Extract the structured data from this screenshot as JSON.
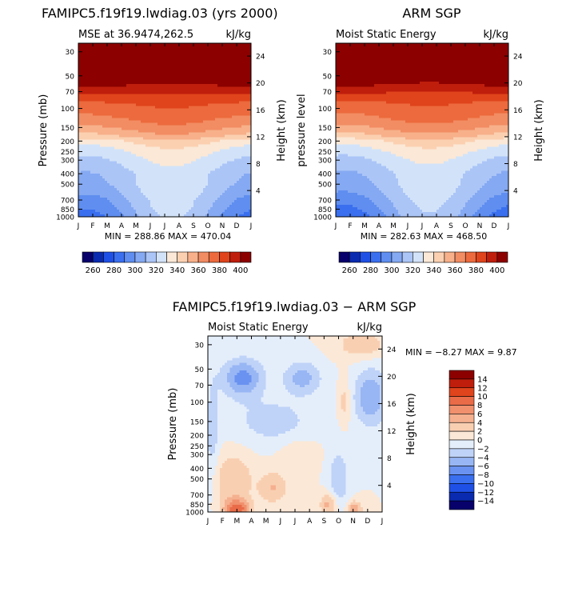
{
  "panels": [
    {
      "title": "FAMIPC5.f19f19.lwdiag.03 (yrs 2000)",
      "subtitle_left": "MSE at 36.9474,262.5",
      "subtitle_right": "kJ/kg",
      "ylabel": "Pressure (mb)",
      "ylabel_right": "Height (km)",
      "minmax": "MIN = 288.86  MAX = 470.04"
    },
    {
      "title": "ARM SGP",
      "subtitle_left": "Moist Static Energy",
      "subtitle_right": "kJ/kg",
      "ylabel": "pressure level",
      "ylabel_right": "Height (km)",
      "minmax": "MIN = 282.63  MAX = 468.50"
    },
    {
      "title": "FAMIPC5.f19f19.lwdiag.03 − ARM SGP",
      "subtitle_left": "Moist Static Energy",
      "subtitle_right": "kJ/kg",
      "ylabel": "Pressure (mb)",
      "ylabel_right": "Height (km)",
      "minmax": "MIN =  −8.27  MAX =    9.87"
    }
  ],
  "colors": {
    "abs_scale": [
      "#08006b",
      "#0a2bb0",
      "#1f50e6",
      "#3a6fef",
      "#5f8ef0",
      "#85a9f2",
      "#abc5f7",
      "#d2e3f9",
      "#fbe8d6",
      "#fbd0b1",
      "#f7b08a",
      "#f28c63",
      "#ec6a3d",
      "#df441c",
      "#bf1e0c",
      "#8c0000"
    ],
    "diff_scale": [
      "#08006b",
      "#0a2bb0",
      "#1f50e6",
      "#3a6fef",
      "#6a92f0",
      "#98b6f4",
      "#bfd3f8",
      "#e4eefb",
      "#fbe8d6",
      "#f9cfb2",
      "#f5b08f",
      "#f0906c",
      "#e96b48",
      "#df441c",
      "#bf1e0c",
      "#8c0000"
    ]
  },
  "chart_data": [
    {
      "type": "heatmap",
      "title": "FAMIPC5.f19f19.lwdiag.03 (yrs 2000)",
      "subtitle": "MSE at 36.9474,262.5",
      "units": "kJ/kg",
      "xlabel": "",
      "ylabel": "Pressure (mb)",
      "ylabel_right": "Height (km)",
      "x_tick_labels": [
        "J",
        "F",
        "M",
        "A",
        "M",
        "J",
        "J",
        "A",
        "S",
        "O",
        "N",
        "D",
        "J"
      ],
      "y_ticks": [
        30,
        50,
        70,
        100,
        150,
        200,
        250,
        300,
        400,
        500,
        700,
        850,
        1000
      ],
      "y_right_ticks": [
        4,
        8,
        12,
        16,
        20,
        24
      ],
      "y_scale": "log",
      "levels": [
        260,
        270,
        280,
        290,
        300,
        310,
        320,
        330,
        340,
        350,
        360,
        370,
        380,
        390,
        400
      ],
      "colorbar_labels": [
        "260",
        "280",
        "300",
        "320",
        "340",
        "360",
        "380",
        "400"
      ],
      "min": 288.86,
      "max": 470.04,
      "profile": {
        "pressure": [
          25,
          30,
          50,
          60,
          70,
          85,
          100,
          120,
          150,
          180,
          200,
          250,
          300,
          400,
          500,
          600,
          700,
          850,
          1000
        ],
        "base": [
          470,
          455,
          418,
          401,
          392,
          382,
          377,
          372,
          363,
          352,
          341,
          330,
          325,
          318,
          317,
          314,
          310,
          307,
          303
        ],
        "seasonal": [
          0,
          0,
          -2,
          -2,
          -1,
          1,
          3,
          4,
          5,
          6,
          7,
          7,
          8,
          9,
          11,
          13,
          15,
          17,
          18
        ]
      }
    },
    {
      "type": "heatmap",
      "title": "ARM SGP",
      "subtitle": "Moist Static Energy",
      "units": "kJ/kg",
      "xlabel": "",
      "ylabel": "pressure level",
      "ylabel_right": "Height (km)",
      "x_tick_labels": [
        "J",
        "F",
        "M",
        "A",
        "M",
        "J",
        "J",
        "A",
        "S",
        "O",
        "N",
        "D",
        "J"
      ],
      "y_ticks": [
        30,
        50,
        70,
        100,
        150,
        200,
        250,
        300,
        400,
        500,
        700,
        850,
        1000
      ],
      "y_right_ticks": [
        4,
        8,
        12,
        16,
        20,
        24
      ],
      "y_scale": "log",
      "levels": [
        260,
        270,
        280,
        290,
        300,
        310,
        320,
        330,
        340,
        350,
        360,
        370,
        380,
        390,
        400
      ],
      "colorbar_labels": [
        "260",
        "280",
        "300",
        "320",
        "340",
        "360",
        "380",
        "400"
      ],
      "min": 282.63,
      "max": 468.5,
      "profile": {
        "pressure": [
          25,
          30,
          50,
          60,
          70,
          85,
          100,
          120,
          150,
          180,
          200,
          250,
          300,
          400,
          500,
          600,
          700,
          850,
          1000
        ],
        "base": [
          468,
          452,
          417,
          400,
          391,
          381,
          376,
          371,
          362,
          351,
          340,
          330,
          324,
          317,
          315,
          312,
          308,
          304,
          300
        ],
        "seasonal": [
          0,
          0,
          -3,
          -3,
          -2,
          1,
          3,
          4,
          5,
          6,
          7,
          7,
          8,
          9,
          11,
          13,
          15,
          17,
          19
        ]
      }
    },
    {
      "type": "heatmap",
      "title": "FAMIPC5.f19f19.lwdiag.03 − ARM SGP",
      "subtitle": "Moist Static Energy",
      "units": "kJ/kg",
      "xlabel": "",
      "ylabel": "Pressure (mb)",
      "ylabel_right": "Height (km)",
      "x_tick_labels": [
        "J",
        "F",
        "M",
        "A",
        "M",
        "J",
        "J",
        "A",
        "S",
        "O",
        "N",
        "D",
        "J"
      ],
      "y_ticks": [
        30,
        50,
        70,
        100,
        150,
        200,
        250,
        300,
        400,
        500,
        700,
        850,
        1000
      ],
      "y_right_ticks": [
        4,
        8,
        12,
        16,
        20,
        24
      ],
      "y_scale": "log",
      "levels": [
        -14,
        -12,
        -10,
        -8,
        -6,
        -4,
        -2,
        0,
        2,
        4,
        6,
        8,
        10,
        12,
        14
      ],
      "colorbar_labels": [
        "14",
        "12",
        "10",
        "8",
        "6",
        "4",
        "2",
        "0",
        "−2",
        "−4",
        "−6",
        "−8",
        "−10",
        "−12",
        "−14"
      ],
      "min": -8.27,
      "max": 9.87,
      "bumps": [
        {
          "x": 2.0,
          "p": 950,
          "dx": 0.9,
          "dp": 0.22,
          "v": 9
        },
        {
          "x": 1.7,
          "p": 500,
          "dx": 1.4,
          "dp": 0.55,
          "v": 4
        },
        {
          "x": 4.5,
          "p": 600,
          "dx": 1.0,
          "dp": 0.35,
          "v": 4
        },
        {
          "x": 8.3,
          "p": 850,
          "dx": 0.6,
          "dp": 0.25,
          "v": 5
        },
        {
          "x": 10.1,
          "p": 950,
          "dx": 0.5,
          "dp": 0.18,
          "v": 6
        },
        {
          "x": 10.6,
          "p": 30,
          "dx": 1.6,
          "dp": 0.28,
          "v": 4
        },
        {
          "x": 6.2,
          "p": 300,
          "dx": 1.3,
          "dp": 0.35,
          "v": 2
        },
        {
          "x": 9.4,
          "p": 100,
          "dx": 0.4,
          "dp": 0.45,
          "v": 3
        },
        {
          "x": 2.4,
          "p": 60,
          "dx": 1.4,
          "dp": 0.4,
          "v": -7
        },
        {
          "x": 6.5,
          "p": 60,
          "dx": 1.3,
          "dp": 0.35,
          "v": -5
        },
        {
          "x": 11.2,
          "p": 90,
          "dx": 1.1,
          "dp": 0.6,
          "v": -6
        },
        {
          "x": 4.5,
          "p": 150,
          "dx": 2.8,
          "dp": 0.5,
          "v": -3
        },
        {
          "x": 9.0,
          "p": 500,
          "dx": 0.7,
          "dp": 0.6,
          "v": -4
        },
        {
          "x": 0.3,
          "p": 200,
          "dx": 0.5,
          "dp": 1.2,
          "v": -3
        }
      ]
    }
  ]
}
